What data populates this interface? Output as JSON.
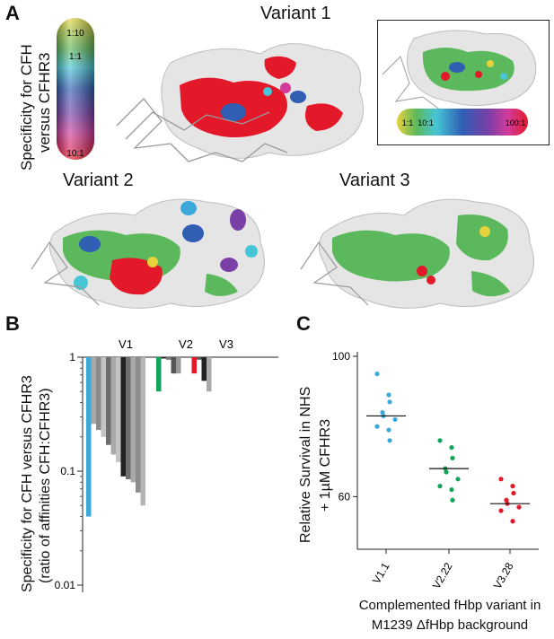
{
  "panel_a": {
    "letter": "A",
    "variant1_title": "Variant 1",
    "variant2_title": "Variant 2",
    "variant3_title": "Variant 3",
    "ylabel_line1": "Specificity for CFH",
    "ylabel_line2": "versus CFHR3",
    "scale_top": "1:10",
    "scale_mid": "1:1",
    "scale_bottom": "10:1",
    "inset_scale_left": "1:1",
    "inset_scale_mid": "10:1",
    "inset_scale_right": "100:1",
    "colors": {
      "red": "#e3192a",
      "green": "#5cb85c",
      "blue": "#2f5eb3",
      "cyan": "#46c6d6",
      "yellow": "#e6d23a",
      "purple": "#7b3fa8",
      "white": "#e8e8e8"
    }
  },
  "panel_b": {
    "letter": "B",
    "ylabel_line1": "Specificity for CFH versus CFHR3",
    "ylabel_line2": "(ratio of affinities CFH:CFHR3)",
    "ytick_1": "1",
    "ytick_01": "0.1",
    "ytick_001": "0.01",
    "group_v1": "V1",
    "group_v2": "V2",
    "group_v3": "V3"
  },
  "panel_c": {
    "letter": "C",
    "ylabel_line1": "Relative Survival in NHS",
    "ylabel_line2": "+ 1µM CFHR3",
    "ytick_100": "100",
    "ytick_60": "60",
    "xlabel_line1": "Complemented fHbp variant in",
    "xlabel_line2": "M1239 ΔfHbp background",
    "cat_1": "V1.1",
    "cat_2": "V2.22",
    "cat_3": "V3.28"
  },
  "chart_data": [
    {
      "type": "bar",
      "panel": "B",
      "yscale": "log",
      "ylim": [
        0.01,
        1
      ],
      "groups": [
        {
          "name": "V1",
          "values": [
            0.04,
            0.26,
            0.23,
            0.2,
            0.17,
            0.14,
            0.12,
            0.09,
            0.085,
            0.08,
            0.065,
            0.05
          ],
          "colors": [
            "#3ba9d9",
            "#a9a9a9",
            "#8c8c8c",
            "#c4c4c4",
            "#6e6e6e",
            "#a9a9a9",
            "#c4c4c4",
            "#222222",
            "#6e6e6e",
            "#a9a9a9",
            "#8c8c8c",
            "#b5b5b5"
          ]
        },
        {
          "name": "V2",
          "values": [
            0.5,
            1.0,
            0.95,
            0.72,
            0.72
          ],
          "colors": [
            "#14a35a",
            "#222222",
            "#777777",
            "#555555",
            "#999999"
          ]
        },
        {
          "name": "V3",
          "values": [
            0.72,
            0.95,
            0.62,
            0.5
          ],
          "colors": [
            "#e3192a",
            "#555555",
            "#222222",
            "#aaaaaa"
          ]
        }
      ]
    },
    {
      "type": "scatter",
      "panel": "C",
      "ylim": [
        45,
        100
      ],
      "categories": [
        "V1.1",
        "V2.22",
        "V3.28"
      ],
      "series": [
        {
          "category": "V1.1",
          "values": [
            95,
            89,
            87,
            84,
            83,
            82,
            80,
            79,
            76
          ],
          "mean": 83,
          "color": "#3ba9d9"
        },
        {
          "category": "V2.22",
          "values": [
            76,
            74,
            71,
            68,
            67,
            65,
            63,
            62,
            59
          ],
          "mean": 68,
          "color": "#14a35a"
        },
        {
          "category": "V3.28",
          "values": [
            65,
            63,
            61,
            59,
            58,
            57,
            56,
            53
          ],
          "mean": 58,
          "color": "#e3192a"
        }
      ]
    }
  ]
}
